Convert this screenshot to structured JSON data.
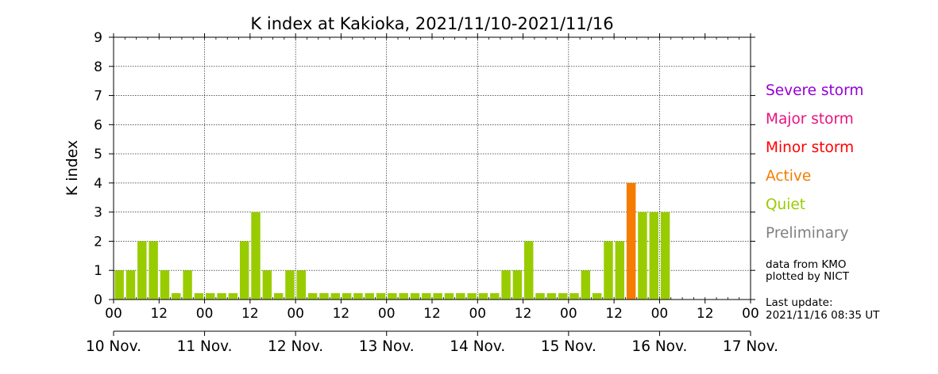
{
  "chart_data": {
    "type": "bar",
    "title": "K index at Kakioka, 2021/11/10-2021/11/16",
    "ylabel": "K index",
    "ylim": [
      0,
      9
    ],
    "yticks": [
      "0",
      "1",
      "2",
      "3",
      "4",
      "5",
      "6",
      "7",
      "8",
      "9"
    ],
    "xlim_hours": [
      0,
      168
    ],
    "bar_interval_hours": 3,
    "x_hour_ticks": [
      "00",
      "12",
      "00",
      "12",
      "00",
      "12",
      "00",
      "12",
      "00",
      "12",
      "00",
      "12",
      "00",
      "12",
      "00"
    ],
    "x_day_labels": [
      "10 Nov.",
      "11 Nov.",
      "12 Nov.",
      "13 Nov.",
      "14 Nov.",
      "15 Nov.",
      "16 Nov.",
      "17 Nov."
    ],
    "grid": true,
    "values": [
      1,
      1,
      2,
      2,
      1,
      0,
      1,
      0,
      0,
      0,
      0,
      2,
      3,
      1,
      0,
      1,
      1,
      0,
      0,
      0,
      0,
      0,
      0,
      0,
      0,
      0,
      0,
      0,
      0,
      0,
      0,
      0,
      0,
      0,
      1,
      1,
      2,
      0,
      0,
      0,
      0,
      1,
      0,
      2,
      2,
      4,
      3,
      3,
      3
    ],
    "bar_categories": [
      "quiet",
      "quiet",
      "quiet",
      "quiet",
      "quiet",
      "quiet",
      "quiet",
      "quiet",
      "quiet",
      "quiet",
      "quiet",
      "quiet",
      "quiet",
      "quiet",
      "quiet",
      "quiet",
      "quiet",
      "quiet",
      "quiet",
      "quiet",
      "quiet",
      "quiet",
      "quiet",
      "quiet",
      "quiet",
      "quiet",
      "quiet",
      "quiet",
      "quiet",
      "quiet",
      "quiet",
      "quiet",
      "quiet",
      "quiet",
      "quiet",
      "quiet",
      "quiet",
      "quiet",
      "quiet",
      "quiet",
      "quiet",
      "quiet",
      "quiet",
      "quiet",
      "quiet",
      "active",
      "quiet",
      "quiet",
      "quiet"
    ],
    "legend": [
      {
        "label": "Severe storm",
        "color": "#9400d3"
      },
      {
        "label": "Major storm",
        "color": "#e8127f"
      },
      {
        "label": "Minor storm",
        "color": "#ff0000"
      },
      {
        "label": "Active",
        "color": "#f57c00"
      },
      {
        "label": "Quiet",
        "color": "#99cc00"
      },
      {
        "label": "Preliminary",
        "color": "#808080"
      }
    ],
    "colors": {
      "quiet": "#99cc00",
      "active": "#f57c00"
    }
  },
  "notes": {
    "source_line1": "data from KMO",
    "source_line2": "plotted by NICT",
    "update_label": "Last update:",
    "update_time": "2021/11/16 08:35 UT"
  }
}
